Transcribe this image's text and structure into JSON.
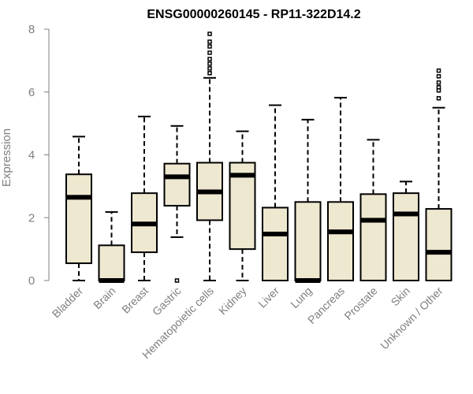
{
  "chart_data": {
    "type": "box",
    "title": "ENSG00000260145 - RP11-322D14.2",
    "ylabel": "Expression",
    "xlabel": "",
    "ylim": [
      0,
      8
    ],
    "yticks": [
      "0",
      "2",
      "4",
      "6",
      "8"
    ],
    "box_fill": "#EEE8D0",
    "stroke_color": "#000000",
    "axis_color": "#7f7f7f",
    "categories": [
      "Bladder",
      "Brain",
      "Breast",
      "Gastric",
      "Hematopoietic cells",
      "Kidney",
      "Liver",
      "Lung",
      "Pancreas",
      "Prostate",
      "Skin",
      "Unknown / Other"
    ],
    "boxes": [
      {
        "min": 0.0,
        "q1": 0.55,
        "median": 2.65,
        "q3": 3.38,
        "max": 4.58,
        "outliers": []
      },
      {
        "min": 0.0,
        "q1": 0.0,
        "median": 0.0,
        "q3": 1.12,
        "max": 2.18,
        "outliers": []
      },
      {
        "min": 0.0,
        "q1": 0.9,
        "median": 1.8,
        "q3": 2.78,
        "max": 5.22,
        "outliers": []
      },
      {
        "min": 1.38,
        "q1": 2.38,
        "median": 3.3,
        "q3": 3.72,
        "max": 4.92,
        "outliers": [
          0.0
        ]
      },
      {
        "min": 0.0,
        "q1": 1.92,
        "median": 2.82,
        "q3": 3.75,
        "max": 6.45,
        "outliers": [
          6.6,
          6.75,
          6.9,
          7.05,
          7.25,
          7.45,
          7.6,
          7.85
        ]
      },
      {
        "min": 0.0,
        "q1": 1.0,
        "median": 3.35,
        "q3": 3.75,
        "max": 4.75,
        "outliers": []
      },
      {
        "min": 0.0,
        "q1": 0.0,
        "median": 1.48,
        "q3": 2.32,
        "max": 5.58,
        "outliers": []
      },
      {
        "min": 0.0,
        "q1": 0.0,
        "median": 0.0,
        "q3": 2.5,
        "max": 5.12,
        "outliers": []
      },
      {
        "min": 0.0,
        "q1": 0.0,
        "median": 1.55,
        "q3": 2.5,
        "max": 5.82,
        "outliers": []
      },
      {
        "min": 0.0,
        "q1": 0.0,
        "median": 1.92,
        "q3": 2.75,
        "max": 4.48,
        "outliers": []
      },
      {
        "min": 0.0,
        "q1": 0.0,
        "median": 2.12,
        "q3": 2.78,
        "max": 3.15,
        "outliers": []
      },
      {
        "min": 0.0,
        "q1": 0.0,
        "median": 0.9,
        "q3": 2.28,
        "max": 5.5,
        "outliers": [
          5.8,
          6.05,
          6.15,
          6.3,
          6.5,
          6.68
        ]
      }
    ]
  }
}
